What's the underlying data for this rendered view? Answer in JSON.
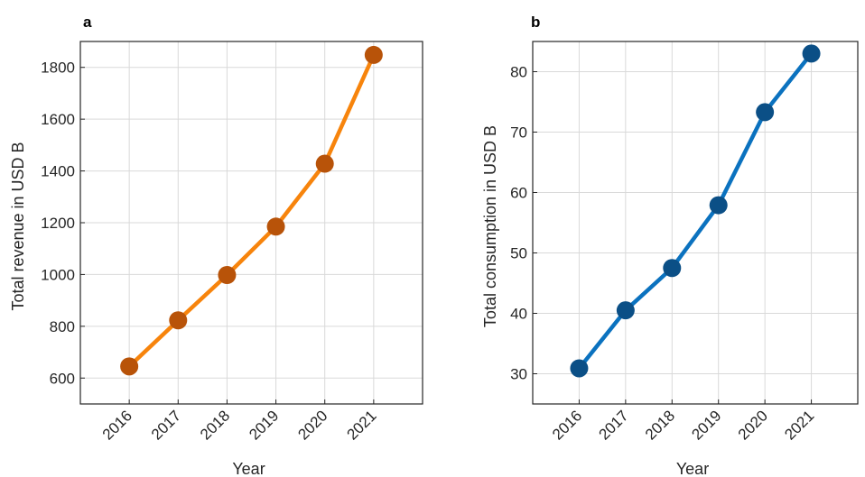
{
  "chart_data": [
    {
      "panel_label": "a",
      "type": "line",
      "x": [
        2016,
        2017,
        2018,
        2019,
        2020,
        2021
      ],
      "series": [
        {
          "values": [
            645,
            823,
            998,
            1185,
            1428,
            1848
          ],
          "line_color": "#f7840c",
          "marker_color": "#b85309"
        }
      ],
      "xlabel": "Year",
      "ylabel": "Total revenue in USD B",
      "xlim": [
        2015.0,
        2022.0
      ],
      "ylim": [
        500,
        1900
      ],
      "xticks": [
        "2016",
        "2017",
        "2018",
        "2019",
        "2020",
        "2021"
      ],
      "yticks": [
        "600",
        "800",
        "1000",
        "1200",
        "1400",
        "1600",
        "1800"
      ],
      "grid": true
    },
    {
      "panel_label": "b",
      "type": "line",
      "x": [
        2016,
        2017,
        2018,
        2019,
        2020,
        2021
      ],
      "series": [
        {
          "values": [
            30.9,
            40.5,
            47.5,
            57.9,
            73.3,
            83.0
          ],
          "line_color": "#0b72bf",
          "marker_color": "#0b4f86"
        }
      ],
      "xlabel": "Year",
      "ylabel": "Total consumption in USD B",
      "xlim": [
        2015.0,
        2022.0
      ],
      "ylim": [
        25,
        85
      ],
      "xticks": [
        "2016",
        "2017",
        "2018",
        "2019",
        "2020",
        "2021"
      ],
      "yticks": [
        "30",
        "40",
        "50",
        "60",
        "70",
        "80"
      ],
      "grid": true
    }
  ]
}
